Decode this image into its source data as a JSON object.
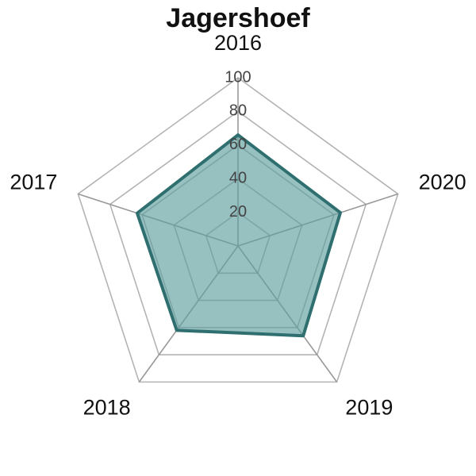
{
  "chart_data": {
    "type": "radar",
    "title": "Jagershoef",
    "categories": [
      "2016",
      "2017",
      "2018",
      "2019",
      "2020"
    ],
    "series": [
      {
        "values": [
          66,
          63,
          62,
          66,
          64
        ]
      }
    ],
    "rlim": [
      0,
      100
    ],
    "radial_ticks": [
      "20",
      "40",
      "60",
      "80",
      "100"
    ],
    "grid": true,
    "colors": {
      "series_fill": "#5f9ea0",
      "series_line": "#2f6f6f",
      "grid": "#b3b3b3",
      "axis": "#999999"
    }
  }
}
